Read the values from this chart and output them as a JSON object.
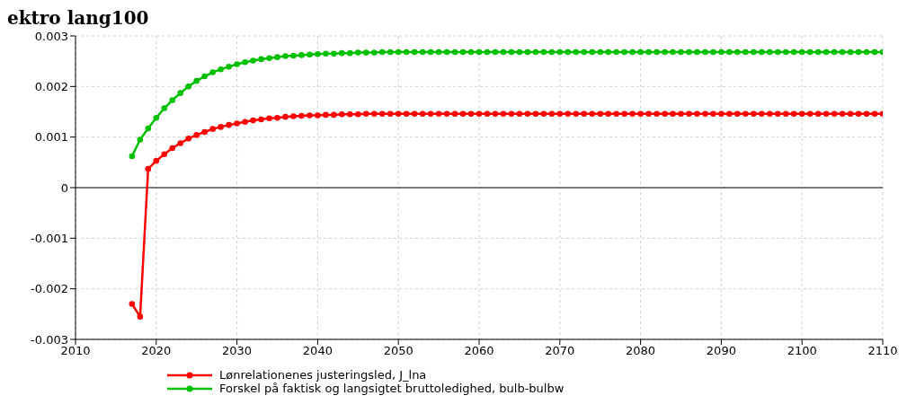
{
  "chart_data": {
    "type": "line",
    "title": "ektro lang100",
    "x": [
      2017,
      2018,
      2019,
      2020,
      2021,
      2022,
      2023,
      2024,
      2025,
      2026,
      2027,
      2028,
      2029,
      2030,
      2031,
      2032,
      2033,
      2034,
      2035,
      2036,
      2037,
      2038,
      2039,
      2040,
      2041,
      2042,
      2043,
      2044,
      2045,
      2046,
      2047,
      2048,
      2049,
      2050,
      2051,
      2052,
      2053,
      2054,
      2055,
      2056,
      2057,
      2058,
      2059,
      2060,
      2061,
      2062,
      2063,
      2064,
      2065,
      2066,
      2067,
      2068,
      2069,
      2070,
      2071,
      2072,
      2073,
      2074,
      2075,
      2076,
      2077,
      2078,
      2079,
      2080,
      2081,
      2082,
      2083,
      2084,
      2085,
      2086,
      2087,
      2088,
      2089,
      2090,
      2091,
      2092,
      2093,
      2094,
      2095,
      2096,
      2097,
      2098,
      2099,
      2100,
      2101,
      2102,
      2103,
      2104,
      2105,
      2106,
      2107,
      2108,
      2109,
      2110
    ],
    "series": [
      {
        "name": "Lønrelationenes justeringsled, J_lna",
        "color": "#ff0000",
        "values": [
          -0.0023,
          -0.00255,
          0.00037,
          0.00053,
          0.00066,
          0.00078,
          0.00088,
          0.00097,
          0.00104,
          0.0011,
          0.00116,
          0.0012,
          0.00124,
          0.00127,
          0.0013,
          0.00133,
          0.00135,
          0.00137,
          0.00138,
          0.0014,
          0.00141,
          0.00142,
          0.00143,
          0.00143,
          0.00144,
          0.00144,
          0.00145,
          0.00145,
          0.00145,
          0.00146,
          0.00146,
          0.00146,
          0.00146,
          0.00146,
          0.00146,
          0.00146,
          0.00146,
          0.00146,
          0.00146,
          0.00146,
          0.00146,
          0.00146,
          0.00146,
          0.00146,
          0.00146,
          0.00146,
          0.00146,
          0.00146,
          0.00146,
          0.00146,
          0.00146,
          0.00146,
          0.00146,
          0.00146,
          0.00146,
          0.00146,
          0.00146,
          0.00146,
          0.00146,
          0.00146,
          0.00146,
          0.00146,
          0.00146,
          0.00146,
          0.00146,
          0.00146,
          0.00146,
          0.00146,
          0.00146,
          0.00146,
          0.00146,
          0.00146,
          0.00146,
          0.00146,
          0.00146,
          0.00146,
          0.00146,
          0.00146,
          0.00146,
          0.00146,
          0.00146,
          0.00146,
          0.00146,
          0.00146,
          0.00146,
          0.00146,
          0.00146,
          0.00146,
          0.00146,
          0.00146,
          0.00146,
          0.00146,
          0.00146,
          0.00146
        ]
      },
      {
        "name": "Forskel på faktisk og langsigtet bruttoledighed, bulb-bulbw",
        "color": "#00c000",
        "values": [
          0.00062,
          0.00095,
          0.00117,
          0.00138,
          0.00157,
          0.00173,
          0.00187,
          0.002,
          0.00211,
          0.0022,
          0.00228,
          0.00234,
          0.00239,
          0.00244,
          0.00248,
          0.00251,
          0.00254,
          0.00256,
          0.00258,
          0.0026,
          0.00261,
          0.00262,
          0.00263,
          0.00264,
          0.00265,
          0.00265,
          0.00266,
          0.00266,
          0.00267,
          0.00267,
          0.00267,
          0.00268,
          0.00268,
          0.00268,
          0.00268,
          0.00268,
          0.00268,
          0.00268,
          0.00268,
          0.00268,
          0.00268,
          0.00268,
          0.00268,
          0.00268,
          0.00268,
          0.00268,
          0.00268,
          0.00268,
          0.00268,
          0.00268,
          0.00268,
          0.00268,
          0.00268,
          0.00268,
          0.00268,
          0.00268,
          0.00268,
          0.00268,
          0.00268,
          0.00268,
          0.00268,
          0.00268,
          0.00268,
          0.00268,
          0.00268,
          0.00268,
          0.00268,
          0.00268,
          0.00268,
          0.00268,
          0.00268,
          0.00268,
          0.00268,
          0.00268,
          0.00268,
          0.00268,
          0.00268,
          0.00268,
          0.00268,
          0.00268,
          0.00268,
          0.00268,
          0.00268,
          0.00268,
          0.00268,
          0.00268,
          0.00268,
          0.00268,
          0.00268,
          0.00268,
          0.00268,
          0.00268,
          0.00268,
          0.00268
        ]
      }
    ],
    "xlim": [
      2010,
      2110
    ],
    "xticks": [
      2010,
      2020,
      2030,
      2040,
      2050,
      2060,
      2070,
      2080,
      2090,
      2100,
      2110
    ],
    "ylim": [
      -0.003,
      0.003
    ],
    "yticks": [
      -0.003,
      -0.002,
      -0.001,
      0,
      0.001,
      0.002,
      0.003
    ],
    "ref_lines": [
      {
        "axis": "y",
        "value": 0,
        "color": "#555555"
      }
    ],
    "grid": true,
    "legend": "bottom",
    "marker": "circle",
    "line_style": "solid"
  }
}
